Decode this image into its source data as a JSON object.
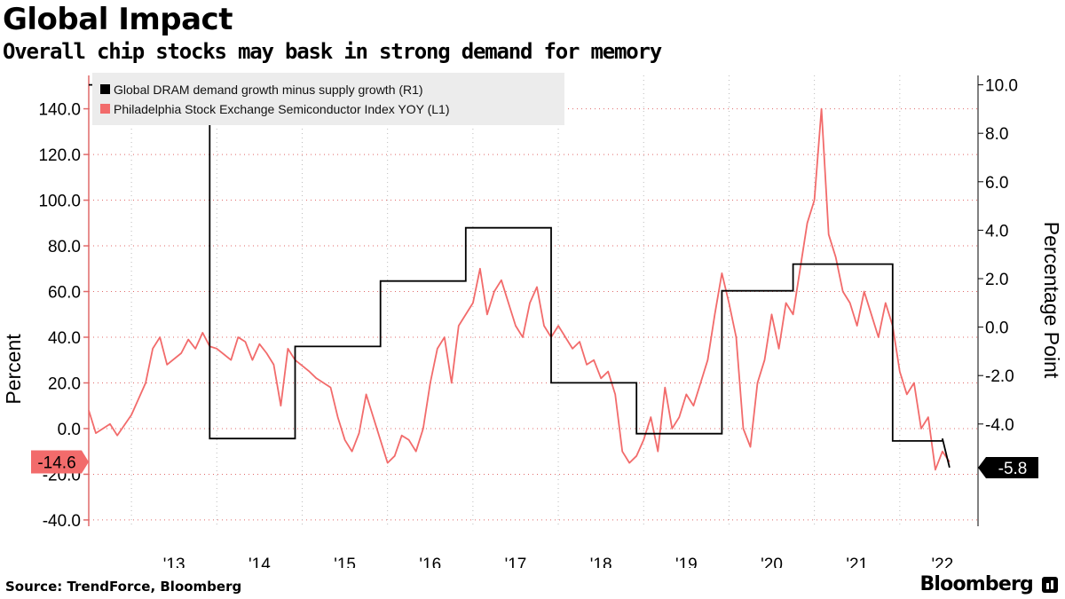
{
  "title": "Global Impact",
  "subtitle": "Overall chip stocks may bask in strong demand for memory",
  "source": "Source: TrendForce, Bloomberg",
  "brand": "Bloomberg",
  "colors": {
    "sox": "#f26b6b",
    "dram": "#000000",
    "grid": "#e06a6a",
    "legend_bg": "#ececec"
  },
  "chart_data": {
    "type": "line",
    "x_axis": {
      "ticks": [
        "'13",
        "'14",
        "'15",
        "'16",
        "'17",
        "'18",
        "'19",
        "'20",
        "'21",
        "'22"
      ],
      "range": [
        "2012-07",
        "2022-12"
      ]
    },
    "y_left": {
      "label": "Percent",
      "range": [
        -40,
        150
      ],
      "ticks": [
        "140.0",
        "120.0",
        "100.0",
        "80.0",
        "60.0",
        "40.0",
        "20.0",
        "0.0",
        "-20.0",
        "-40.0"
      ]
    },
    "y_right": {
      "label": "Percentage Point",
      "range": [
        -7,
        11
      ],
      "ticks": [
        "10.0",
        "8.0",
        "6.0",
        "4.0",
        "2.0",
        "0.0",
        "-2.0",
        "-4.0"
      ]
    },
    "legend_placement": "top-left",
    "grid": "horizontal dotted",
    "series": [
      {
        "name": "Global DRAM demand growth minus supply growth (R1)",
        "axis": "right",
        "color": "#000000",
        "step": true,
        "points": [
          [
            "2012-07",
            10.0
          ],
          [
            "2013-12",
            10.0
          ],
          [
            "2013-12",
            -4.6
          ],
          [
            "2014-12",
            -4.6
          ],
          [
            "2014-12",
            -0.8
          ],
          [
            "2015-12",
            -0.8
          ],
          [
            "2015-12",
            1.9
          ],
          [
            "2016-12",
            1.9
          ],
          [
            "2016-12",
            4.1
          ],
          [
            "2017-12",
            4.1
          ],
          [
            "2017-12",
            -2.3
          ],
          [
            "2018-12",
            -2.3
          ],
          [
            "2018-12",
            -4.4
          ],
          [
            "2019-12",
            -4.4
          ],
          [
            "2019-12",
            1.5
          ],
          [
            "2020-10",
            1.5
          ],
          [
            "2020-10",
            2.6
          ],
          [
            "2021-12",
            2.6
          ],
          [
            "2021-12",
            -4.7
          ],
          [
            "2022-07",
            -4.7
          ],
          [
            "2022-07",
            -4.6
          ],
          [
            "2022-08",
            -5.8
          ]
        ],
        "last_value_label": "-5.8"
      },
      {
        "name": "Philadelphia Stock Exchange Semiconductor Index YOY (L1)",
        "axis": "left",
        "color": "#f26b6b",
        "step": false,
        "points": [
          [
            "2012-07",
            8
          ],
          [
            "2012-08",
            -2
          ],
          [
            "2012-10",
            2
          ],
          [
            "2012-11",
            -3
          ],
          [
            "2013-01",
            6
          ],
          [
            "2013-03",
            20
          ],
          [
            "2013-04",
            35
          ],
          [
            "2013-05",
            40
          ],
          [
            "2013-06",
            28
          ],
          [
            "2013-08",
            33
          ],
          [
            "2013-09",
            39
          ],
          [
            "2013-10",
            35
          ],
          [
            "2013-11",
            42
          ],
          [
            "2013-12",
            36
          ],
          [
            "2014-01",
            35
          ],
          [
            "2014-03",
            30
          ],
          [
            "2014-04",
            40
          ],
          [
            "2014-05",
            38
          ],
          [
            "2014-06",
            30
          ],
          [
            "2014-07",
            37
          ],
          [
            "2014-08",
            33
          ],
          [
            "2014-09",
            28
          ],
          [
            "2014-10",
            10
          ],
          [
            "2014-11",
            35
          ],
          [
            "2014-12",
            30
          ],
          [
            "2015-02",
            25
          ],
          [
            "2015-03",
            22
          ],
          [
            "2015-05",
            18
          ],
          [
            "2015-06",
            5
          ],
          [
            "2015-07",
            -5
          ],
          [
            "2015-08",
            -10
          ],
          [
            "2015-09",
            -2
          ],
          [
            "2015-10",
            15
          ],
          [
            "2015-11",
            5
          ],
          [
            "2016-01",
            -15
          ],
          [
            "2016-02",
            -12
          ],
          [
            "2016-03",
            -3
          ],
          [
            "2016-04",
            -5
          ],
          [
            "2016-05",
            -10
          ],
          [
            "2016-06",
            0
          ],
          [
            "2016-07",
            20
          ],
          [
            "2016-08",
            35
          ],
          [
            "2016-09",
            40
          ],
          [
            "2016-10",
            20
          ],
          [
            "2016-11",
            45
          ],
          [
            "2017-01",
            55
          ],
          [
            "2017-02",
            70
          ],
          [
            "2017-03",
            50
          ],
          [
            "2017-04",
            60
          ],
          [
            "2017-05",
            65
          ],
          [
            "2017-06",
            55
          ],
          [
            "2017-07",
            45
          ],
          [
            "2017-08",
            40
          ],
          [
            "2017-09",
            55
          ],
          [
            "2017-10",
            62
          ],
          [
            "2017-11",
            45
          ],
          [
            "2017-12",
            40
          ],
          [
            "2018-01",
            45
          ],
          [
            "2018-03",
            35
          ],
          [
            "2018-04",
            38
          ],
          [
            "2018-05",
            28
          ],
          [
            "2018-06",
            30
          ],
          [
            "2018-07",
            22
          ],
          [
            "2018-08",
            25
          ],
          [
            "2018-09",
            15
          ],
          [
            "2018-10",
            -10
          ],
          [
            "2018-11",
            -15
          ],
          [
            "2018-12",
            -12
          ],
          [
            "2019-01",
            -5
          ],
          [
            "2019-02",
            5
          ],
          [
            "2019-03",
            -10
          ],
          [
            "2019-04",
            18
          ],
          [
            "2019-05",
            0
          ],
          [
            "2019-06",
            5
          ],
          [
            "2019-07",
            15
          ],
          [
            "2019-08",
            10
          ],
          [
            "2019-09",
            20
          ],
          [
            "2019-10",
            30
          ],
          [
            "2019-11",
            50
          ],
          [
            "2019-12",
            68
          ],
          [
            "2020-01",
            55
          ],
          [
            "2020-02",
            40
          ],
          [
            "2020-03",
            0
          ],
          [
            "2020-04",
            -8
          ],
          [
            "2020-05",
            20
          ],
          [
            "2020-06",
            30
          ],
          [
            "2020-07",
            50
          ],
          [
            "2020-08",
            35
          ],
          [
            "2020-09",
            55
          ],
          [
            "2020-10",
            50
          ],
          [
            "2020-11",
            70
          ],
          [
            "2020-12",
            90
          ],
          [
            "2021-01",
            100
          ],
          [
            "2021-02",
            140
          ],
          [
            "2021-03",
            85
          ],
          [
            "2021-04",
            75
          ],
          [
            "2021-05",
            60
          ],
          [
            "2021-06",
            55
          ],
          [
            "2021-07",
            45
          ],
          [
            "2021-08",
            60
          ],
          [
            "2021-09",
            50
          ],
          [
            "2021-10",
            40
          ],
          [
            "2021-11",
            55
          ],
          [
            "2021-12",
            45
          ],
          [
            "2022-01",
            25
          ],
          [
            "2022-02",
            15
          ],
          [
            "2022-03",
            20
          ],
          [
            "2022-04",
            0
          ],
          [
            "2022-05",
            5
          ],
          [
            "2022-06",
            -18
          ],
          [
            "2022-07",
            -10
          ],
          [
            "2022-08",
            -14.6
          ]
        ],
        "last_value_label": "-14.6"
      }
    ]
  }
}
